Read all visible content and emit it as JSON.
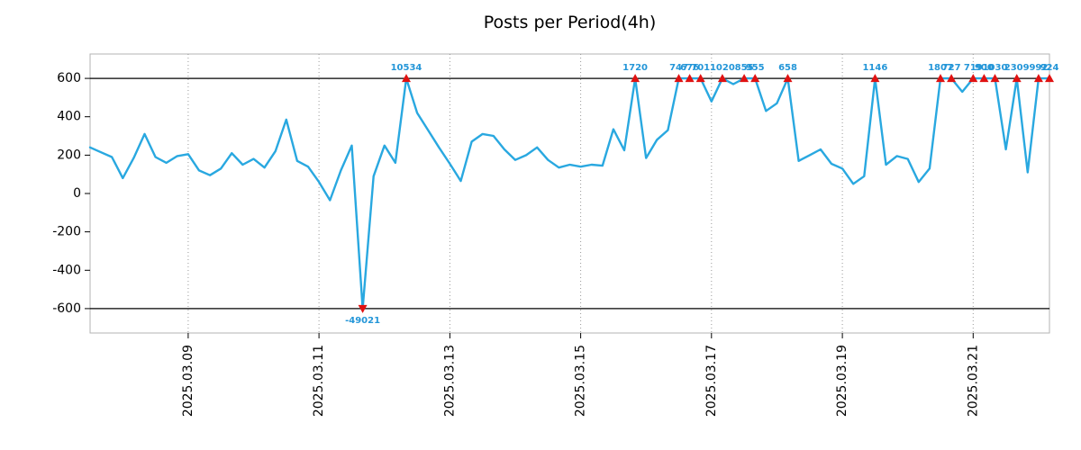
{
  "chart_data": {
    "type": "line",
    "title": "Posts per Period(4h)",
    "xlabel": "",
    "ylabel": "",
    "ylim": [
      -727,
      727
    ],
    "clip_value": 600,
    "yticks": [
      600,
      400,
      200,
      0,
      -200,
      -400,
      -600
    ],
    "xticks": [
      {
        "index": 9,
        "label": "2025.03.09"
      },
      {
        "index": 21,
        "label": "2025.03.11"
      },
      {
        "index": 33,
        "label": "2025.03.13"
      },
      {
        "index": 45,
        "label": "2025.03.15"
      },
      {
        "index": 57,
        "label": "2025.03.17"
      },
      {
        "index": 69,
        "label": "2025.03.19"
      },
      {
        "index": 81,
        "label": "2025.03.21"
      }
    ],
    "period_hours": 4,
    "values": [
      240,
      215,
      190,
      80,
      185,
      310,
      190,
      160,
      195,
      205,
      120,
      95,
      130,
      210,
      150,
      180,
      135,
      220,
      385,
      170,
      140,
      60,
      -35,
      120,
      250,
      -49021,
      90,
      250,
      160,
      10534,
      420,
      330,
      240,
      155,
      65,
      270,
      310,
      300,
      230,
      175,
      200,
      240,
      175,
      135,
      150,
      140,
      150,
      145,
      335,
      225,
      1720,
      185,
      280,
      330,
      747,
      676,
      701,
      480,
      1020,
      570,
      855,
      955,
      430,
      470,
      658,
      170,
      200,
      230,
      155,
      130,
      50,
      90,
      1146,
      150,
      195,
      180,
      60,
      130,
      1807,
      727,
      530,
      719,
      900,
      1030,
      230,
      2309,
      110,
      992,
      924
    ],
    "grid": "vertical-dotted",
    "legend": "none",
    "line_color": "#29a8e0",
    "marker_color": "#e01212",
    "annotation_color": "#2496d8",
    "clip_line_color": "#000000",
    "grid_color": "#999999",
    "frame_color": "#b3b3b3",
    "tick_color": "#000000"
  }
}
